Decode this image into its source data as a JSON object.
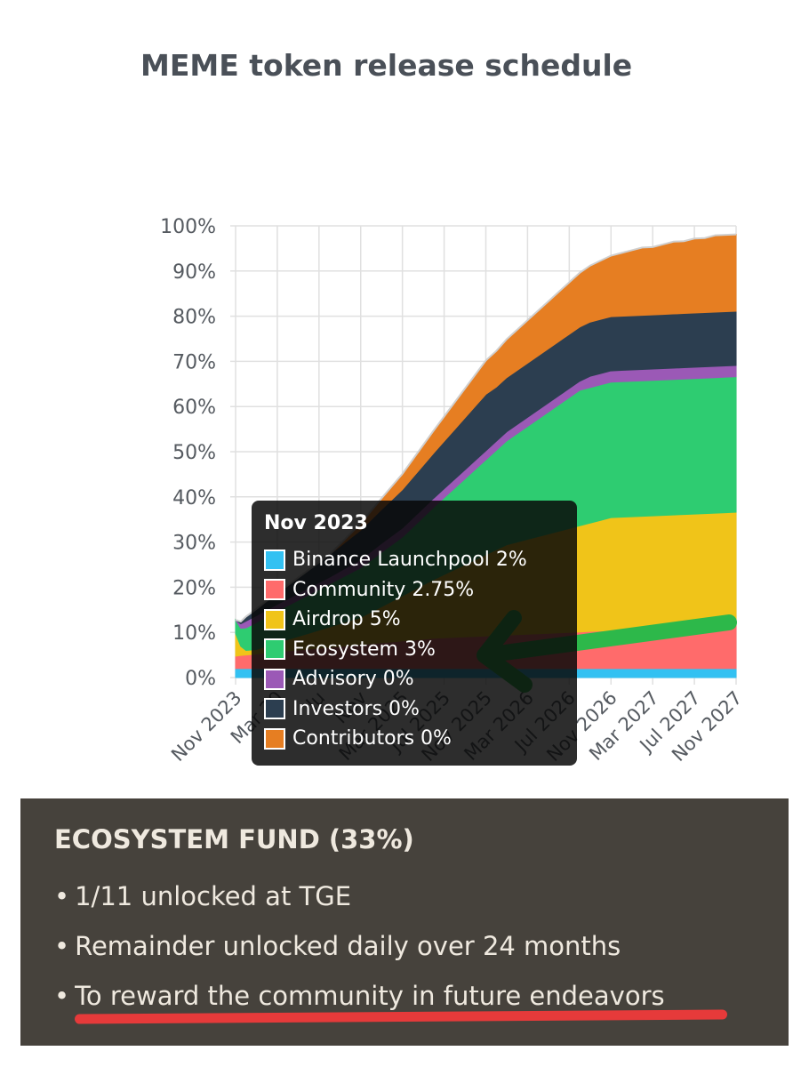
{
  "title": "MEME token release schedule",
  "chart_data": {
    "type": "area",
    "stacked": true,
    "ylim": [
      0,
      100
    ],
    "yticks": [
      "0%",
      "10%",
      "20%",
      "30%",
      "40%",
      "50%",
      "60%",
      "70%",
      "80%",
      "90%",
      "100%"
    ],
    "xticks": [
      "Nov 2023",
      "Mar 2024",
      "Jul 2024",
      "Nov 2024",
      "Mar 2025",
      "Jul 2025",
      "Nov 2025",
      "Mar 2026",
      "Jul 2026",
      "Nov 2026",
      "Mar 2027",
      "Jul 2027",
      "Nov 2027"
    ],
    "xtick_visible_labels": [
      "Nov 2023",
      "Mar 20",
      "Ju",
      "Nov",
      "Mar 2025",
      "Jul 2025",
      "Nov 2025",
      "Mar 2026",
      "Jul 2026",
      "Nov 2026",
      "Mar 2027",
      "Jul 2027",
      "Nov 2027"
    ],
    "x_months": [
      0,
      0.5,
      1,
      2,
      3,
      4,
      5,
      6,
      7,
      8,
      9,
      10,
      11,
      12,
      13,
      14,
      15,
      16,
      17,
      18,
      19,
      20,
      21,
      22,
      23,
      24,
      25,
      26,
      27,
      28,
      29,
      30,
      31,
      32,
      33,
      34,
      35,
      36,
      37,
      38,
      39,
      40,
      41,
      42,
      43,
      44,
      45,
      46,
      47,
      48
    ],
    "series": [
      {
        "name": "Binance Launchpool",
        "color": "#33c1f2",
        "values": [
          2,
          2,
          2,
          2,
          2,
          2,
          2,
          2,
          2,
          2,
          2,
          2,
          2,
          2,
          2,
          2,
          2,
          2,
          2,
          2,
          2,
          2,
          2,
          2,
          2,
          2,
          2,
          2,
          2,
          2,
          2,
          2,
          2,
          2,
          2,
          2,
          2,
          2,
          2,
          2,
          2,
          2,
          2,
          2,
          2,
          2,
          2,
          2,
          2,
          2
        ]
      },
      {
        "name": "Community",
        "color": "#ff6b6b",
        "values": [
          2.75,
          2.9,
          3,
          3.2,
          3.5,
          3.7,
          3.9,
          4.1,
          4.3,
          4.5,
          4.7,
          4.9,
          5.1,
          5.3,
          5.5,
          5.7,
          5.9,
          6.1,
          6.3,
          6.5,
          6.7,
          6.8,
          6.9,
          7,
          7.1,
          7.2,
          7.3,
          7.4,
          7.5,
          7.6,
          7.7,
          7.8,
          7.9,
          8,
          8.1,
          8.2,
          8.3,
          8.4,
          8.5,
          8.6,
          8.7,
          8.8,
          8.9,
          9,
          9.1,
          9.2,
          9.3,
          9.4,
          9.5,
          9.6
        ]
      },
      {
        "name": "Airdrop",
        "color": "#f0c419",
        "values": [
          5,
          2,
          1,
          1,
          1.5,
          2,
          2.5,
          3,
          3.5,
          4,
          4.5,
          5,
          5.5,
          6,
          7,
          8,
          9,
          10,
          11,
          12,
          13,
          14,
          15,
          16,
          17,
          18,
          19,
          20,
          20.5,
          21,
          21.5,
          22,
          22.5,
          23,
          23.5,
          24,
          24.5,
          25,
          25,
          25,
          25,
          25,
          25,
          25,
          25,
          25,
          25,
          25,
          25,
          25
        ]
      },
      {
        "name": "Ecosystem",
        "color": "#2ecc71",
        "values": [
          3,
          4,
          5,
          6,
          6.5,
          7,
          7.5,
          8,
          8.5,
          9,
          9.5,
          10,
          10.5,
          11,
          11.5,
          12,
          12.5,
          13,
          14,
          15,
          16,
          17,
          18,
          19,
          20,
          21,
          22,
          23,
          24,
          25,
          26,
          27,
          28,
          29,
          30,
          30,
          30,
          30,
          30,
          30,
          30,
          30,
          30,
          30,
          30,
          30,
          30,
          30,
          30,
          30
        ]
      },
      {
        "name": "Advisory",
        "color": "#9b59b6",
        "values": [
          0,
          1,
          1.5,
          1.5,
          1.5,
          1.5,
          1.5,
          1.5,
          1.5,
          1.5,
          1.5,
          1.6,
          1.7,
          1.8,
          1.9,
          2,
          2,
          2,
          2,
          2,
          2,
          2,
          2,
          2,
          2,
          2,
          2,
          2,
          2,
          2,
          2,
          2,
          2,
          2,
          2,
          2.5,
          2.5,
          2.5,
          2.5,
          2.5,
          2.5,
          2.5,
          2.5,
          2.5,
          2.5,
          2.5,
          2.5,
          2.5,
          2.5,
          2.5
        ]
      },
      {
        "name": "Investors",
        "color": "#2c3e50",
        "values": [
          0,
          0.5,
          1,
          1.5,
          2,
          2.5,
          3,
          3.5,
          4,
          4.5,
          5,
          5.5,
          6,
          6.5,
          7,
          7.5,
          8,
          8.5,
          9,
          9.5,
          10,
          10.5,
          11,
          11.5,
          12,
          12.5,
          12,
          12,
          12,
          12,
          12,
          12,
          12,
          12,
          12,
          12,
          12,
          12,
          12,
          12,
          12,
          12,
          12,
          12,
          12,
          12,
          12,
          12,
          12,
          12
        ]
      },
      {
        "name": "Contributors",
        "color": "#e67e22",
        "values": [
          0,
          0,
          0,
          0,
          0,
          0,
          0,
          0,
          0,
          0,
          0,
          0.5,
          1,
          1.5,
          2,
          2.5,
          3,
          3.5,
          4,
          4.5,
          5,
          5.5,
          6,
          6.5,
          7,
          7.5,
          8,
          8.5,
          9,
          9.5,
          10,
          10.5,
          11,
          11.5,
          12,
          12.5,
          13,
          13.5,
          14,
          14.5,
          15,
          15,
          15.5,
          16,
          16,
          16.5,
          16.5,
          17,
          17,
          17
        ]
      }
    ]
  },
  "tooltip": {
    "title": "Nov 2023",
    "items": [
      {
        "label": "Binance Launchpool 2%",
        "color": "#33c1f2"
      },
      {
        "label": "Community 2.75%",
        "color": "#ff6b6b"
      },
      {
        "label": "Airdrop 5%",
        "color": "#f0c419"
      },
      {
        "label": "Ecosystem 3%",
        "color": "#2ecc71"
      },
      {
        "label": "Advisory 0%",
        "color": "#9b59b6"
      },
      {
        "label": "Investors 0%",
        "color": "#2c3e50"
      },
      {
        "label": "Contributors 0%",
        "color": "#e67e22"
      }
    ]
  },
  "annotation": {
    "arrow_color": "#2db84a",
    "underline_color": "#e63a3a"
  },
  "info": {
    "heading": "ECOSYSTEM FUND (33%)",
    "bullets": [
      "1/11 unlocked at TGE",
      "Remainder unlocked daily over 24 months",
      "To reward the community in future endeavors"
    ]
  }
}
